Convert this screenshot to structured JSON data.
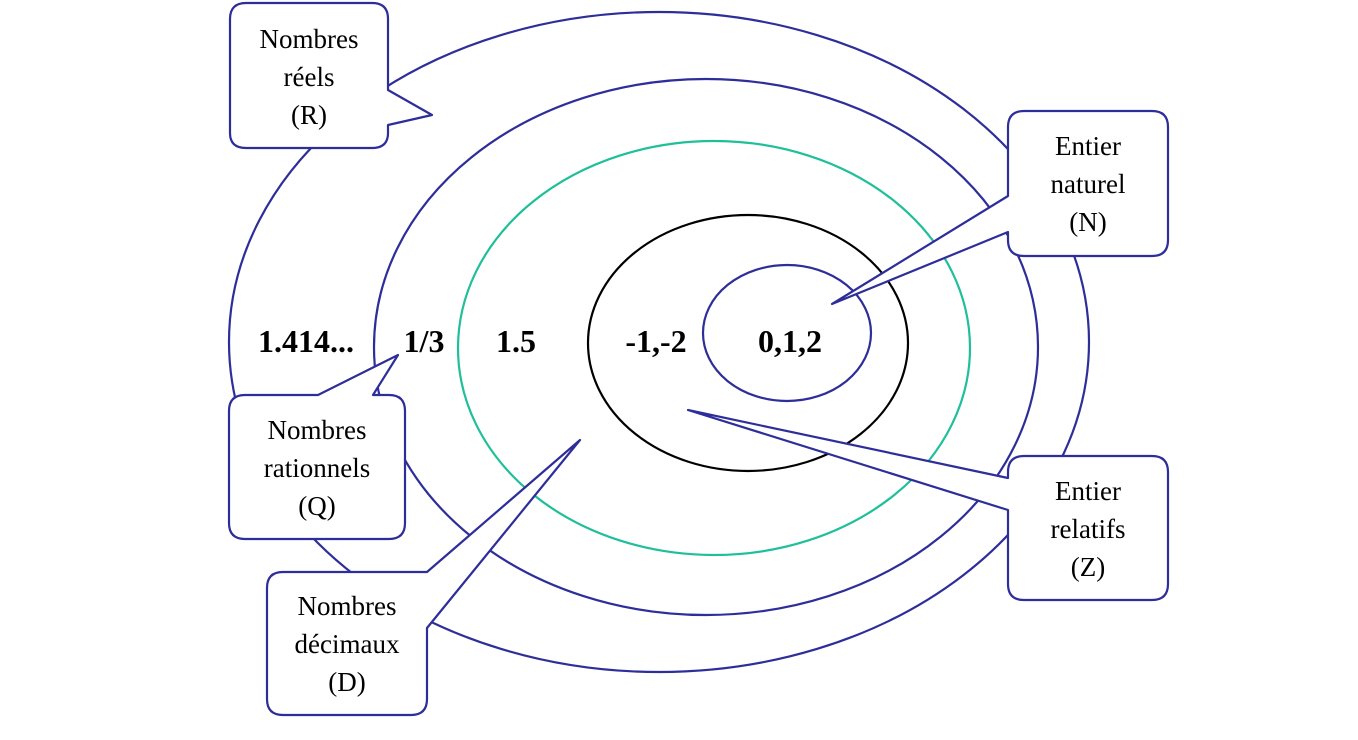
{
  "colors": {
    "blue": "#2e2e9a",
    "teal": "#1fbf9a",
    "black": "#000000"
  },
  "sets": [
    {
      "id": "R",
      "name_lines": [
        "Nombres",
        "réels",
        "(R)"
      ],
      "example": "1.414...",
      "ring_color": "blue"
    },
    {
      "id": "Q",
      "name_lines": [
        "Nombres",
        "rationnels",
        "(Q)"
      ],
      "example": "1/3",
      "ring_color": "blue"
    },
    {
      "id": "D",
      "name_lines": [
        "Nombres",
        "décimaux",
        "(D)"
      ],
      "example": "1.5",
      "ring_color": "teal"
    },
    {
      "id": "Z",
      "name_lines": [
        "Entier",
        "relatifs",
        "(Z)"
      ],
      "example": "-1,-2",
      "ring_color": "black"
    },
    {
      "id": "N",
      "name_lines": [
        "Entier",
        "naturel",
        "(N)"
      ],
      "example": "0,1,2",
      "ring_color": "blue"
    }
  ]
}
